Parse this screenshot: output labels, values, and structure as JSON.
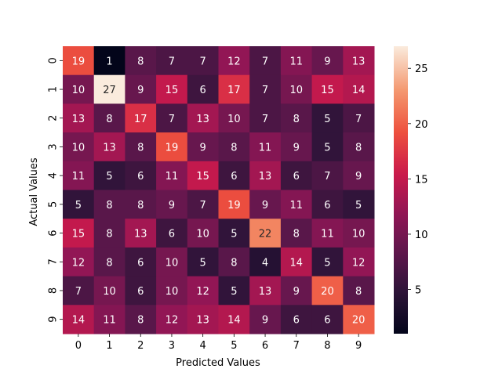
{
  "chart_data": {
    "type": "heatmap",
    "title": "",
    "xlabel": "Predicted Values",
    "ylabel": "Actual Values",
    "x_categories": [
      "0",
      "1",
      "2",
      "3",
      "4",
      "5",
      "6",
      "7",
      "8",
      "9"
    ],
    "y_categories": [
      "0",
      "1",
      "2",
      "3",
      "4",
      "5",
      "6",
      "7",
      "8",
      "9"
    ],
    "values": [
      [
        19,
        1,
        8,
        7,
        7,
        12,
        7,
        11,
        9,
        13
      ],
      [
        10,
        27,
        9,
        15,
        6,
        17,
        7,
        10,
        15,
        14
      ],
      [
        13,
        8,
        17,
        7,
        13,
        10,
        7,
        8,
        5,
        7
      ],
      [
        10,
        13,
        8,
        19,
        9,
        8,
        11,
        9,
        5,
        8
      ],
      [
        11,
        5,
        6,
        11,
        15,
        6,
        13,
        6,
        7,
        9
      ],
      [
        5,
        8,
        8,
        9,
        7,
        19,
        9,
        11,
        6,
        5
      ],
      [
        15,
        8,
        13,
        6,
        10,
        5,
        22,
        8,
        11,
        10
      ],
      [
        12,
        8,
        6,
        10,
        5,
        8,
        4,
        14,
        5,
        12
      ],
      [
        7,
        10,
        6,
        10,
        12,
        5,
        13,
        9,
        20,
        8
      ],
      [
        14,
        11,
        8,
        12,
        13,
        14,
        9,
        6,
        6,
        20
      ]
    ],
    "colorbar": {
      "min": 1,
      "max": 27,
      "ticks": [
        5,
        10,
        15,
        20,
        25
      ]
    },
    "colormap": "rocket",
    "annotations": true,
    "grid": false
  }
}
